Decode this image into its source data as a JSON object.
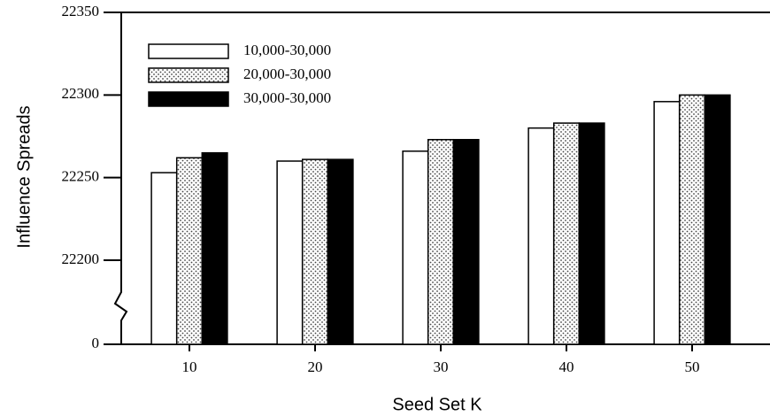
{
  "chart_data": {
    "type": "bar",
    "x_label": "Seed Set K",
    "y_label": "Influence Spreads",
    "categories": [
      "10",
      "20",
      "30",
      "40",
      "50"
    ],
    "series": [
      {
        "name": "10,000-30,000",
        "color": "#ffffff",
        "values": [
          22253,
          22260,
          22266,
          22280,
          22296
        ]
      },
      {
        "name": "20,000-30,000",
        "color": "#ffffff",
        "pattern": "dots",
        "values": [
          22262,
          22261,
          22273,
          22283,
          22300
        ]
      },
      {
        "name": "30,000-30,000",
        "color": "#000000",
        "values": [
          22265,
          22261,
          22273,
          22283,
          22300
        ]
      }
    ],
    "ylim": [
      22200,
      22350
    ],
    "yticks": [
      0,
      22200,
      22250,
      22300,
      22350
    ],
    "y_break": true,
    "legend": "upper left",
    "grid": false
  }
}
